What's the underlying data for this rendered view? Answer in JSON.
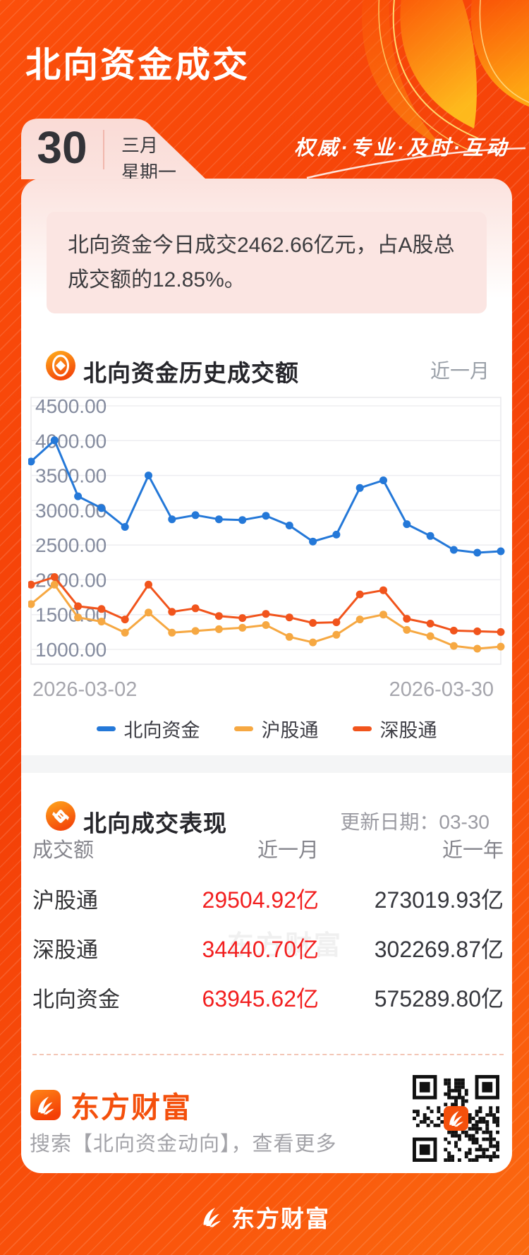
{
  "theme": {
    "accent_orange": "#f4420a",
    "brand_orange": "#f4500c",
    "value_red": "#f21f1f",
    "pink_notice": "#fbe5e2"
  },
  "header": {
    "title": "北向资金成交",
    "slogan": "权威·专业·及时·互动"
  },
  "date_card": {
    "day": "30",
    "month": "三月",
    "weekday": "星期一"
  },
  "notice": {
    "text": "北向资金今日成交2462.66亿元，占A股总成交额的12.85%。"
  },
  "history_section": {
    "icon": "coin-icon",
    "title": "北向资金历史成交额",
    "range_label": "近一月"
  },
  "chart_data": {
    "type": "line",
    "title": "北向资金历史成交额",
    "x_start_label": "2026-03-02",
    "x_end_label": "2026-03-30",
    "ylim": [
      1000,
      4500
    ],
    "y_ticks": [
      4500,
      4000,
      3500,
      3000,
      2500,
      2000,
      1500,
      1000
    ],
    "grid": true,
    "legend_position": "bottom",
    "series": [
      {
        "name": "北向资金",
        "color": "#2478d8",
        "values": [
          3700,
          4005,
          3200,
          3030,
          2760,
          3500,
          2870,
          2930,
          2870,
          2860,
          2920,
          2780,
          2550,
          2650,
          3320,
          3430,
          2800,
          2630,
          2430,
          2390,
          2410
        ]
      },
      {
        "name": "沪股通",
        "color": "#f6a842",
        "values": [
          1650,
          1930,
          1460,
          1400,
          1240,
          1530,
          1240,
          1265,
          1290,
          1310,
          1350,
          1180,
          1100,
          1210,
          1430,
          1500,
          1280,
          1190,
          1050,
          1010,
          1040
        ]
      },
      {
        "name": "深股通",
        "color": "#f1541c",
        "values": [
          1930,
          2040,
          1620,
          1580,
          1430,
          1930,
          1540,
          1590,
          1480,
          1450,
          1510,
          1460,
          1380,
          1390,
          1790,
          1850,
          1440,
          1370,
          1270,
          1260,
          1250
        ]
      }
    ]
  },
  "performance_section": {
    "icon": "handshake-icon",
    "title": "北向成交表现",
    "update_label": "更新日期：03-30"
  },
  "table": {
    "headers": [
      "成交额",
      "近一月",
      "近一年"
    ],
    "rows": [
      {
        "label": "沪股通",
        "month": "29504.92亿",
        "year": "273019.93亿"
      },
      {
        "label": "深股通",
        "month": "34440.70亿",
        "year": "302269.87亿"
      },
      {
        "label": "北向资金",
        "month": "63945.62亿",
        "year": "575289.80亿"
      }
    ]
  },
  "footer": {
    "icon": "em-app-icon",
    "brand": "东方财富",
    "search_hint": "搜索【北向资金动向】，查看更多",
    "qr": "qr-code"
  },
  "bottom_bar": {
    "icon": "em-swoosh-icon",
    "brand": "东方财富"
  },
  "watermark": {
    "text": "东方财富"
  }
}
